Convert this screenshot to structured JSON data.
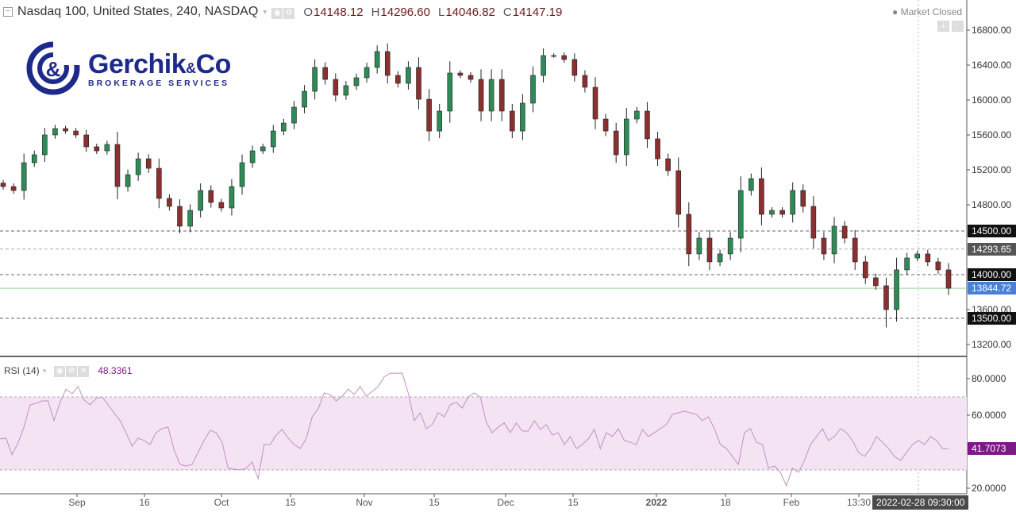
{
  "header": {
    "symbol": "Nasdaq 100, United States, 240, NASDAQ",
    "open_label": "O",
    "open": "14148.12",
    "high_label": "H",
    "high": "14296.60",
    "low_label": "L",
    "low": "14046.82",
    "close_label": "C",
    "close": "14147.19",
    "market_status": "Market Closed"
  },
  "logo": {
    "name": "Gerchik",
    "amp": "&",
    "co": "Co",
    "tagline": "BROKERAGE SERVICES"
  },
  "price_axis": {
    "ticks": [
      "16800.00",
      "16400.00",
      "16000.00",
      "15600.00",
      "15200.00",
      "14800.00",
      "13600.00",
      "13200.00"
    ],
    "levels": [
      {
        "label": "14500.00",
        "value": 14500,
        "color": "#111111"
      },
      {
        "label": "14293.65",
        "value": 14293.65,
        "color": "#555555"
      },
      {
        "label": "14000.00",
        "value": 14000,
        "color": "#111111"
      },
      {
        "label": "13844.72",
        "value": 13844.72,
        "color": "#4a7fd8"
      },
      {
        "label": "13500.00",
        "value": 13500,
        "color": "#111111"
      }
    ]
  },
  "rsi": {
    "title": "RSI (14)",
    "hover_value": "48.3361",
    "last_value": "41.7073",
    "ticks": [
      "80.0000",
      "60.0000",
      "20.0000"
    ],
    "upper": 70,
    "lower": 30,
    "color": "#9c27b0"
  },
  "time_axis": {
    "labels": [
      "Sep",
      "16",
      "Oct",
      "15",
      "Nov",
      "15",
      "Dec",
      "15",
      "2022",
      "18",
      "Feb",
      "13:30"
    ],
    "crosshair_date": "2022-02-28 09:30:00"
  },
  "chart_data": {
    "type": "candlestick",
    "ylim": [
      13200,
      16800
    ],
    "up_color": "#2e8b57",
    "down_color": "#8b2f2f",
    "close": [
      15009,
      14964,
      15282,
      15373,
      15600,
      15673,
      15645,
      15600,
      15464,
      15418,
      15491,
      15009,
      15145,
      15327,
      15218,
      14873,
      14782,
      14555,
      14736,
      14964,
      14827,
      14764,
      15009,
      15282,
      15418,
      15464,
      15645,
      15736,
      15918,
      16100,
      16373,
      16236,
      16055,
      16164,
      16255,
      16373,
      16555,
      16282,
      16191,
      16373,
      16009,
      15645,
      15873,
      16309,
      16282,
      16236,
      15873,
      16236,
      15873,
      15645,
      15964,
      16282,
      16509,
      16509,
      16464,
      16282,
      16146,
      15782,
      15645,
      15373,
      15782,
      15873,
      15555,
      15327,
      15191,
      14691,
      14237,
      14418,
      14146,
      14237,
      14418,
      14964,
      15100,
      14691,
      14736,
      14691,
      14964,
      14782,
      14418,
      14237,
      14555,
      14418,
      14146,
      13964,
      13873,
      13600,
      14055,
      14191,
      14237,
      14146,
      14055,
      13845
    ],
    "rsi": [
      47,
      47.4,
      38.3,
      44.8,
      53.5,
      65.6,
      66.5,
      67.8,
      67.8,
      57,
      67,
      74.3,
      71.7,
      75.7,
      68.3,
      65.7,
      69.1,
      70,
      65.7,
      61.3,
      57,
      50.4,
      43,
      47.4,
      46.1,
      43.9,
      50.4,
      52.6,
      53.5,
      40.9,
      33,
      32.2,
      33,
      39.6,
      46.1,
      51.7,
      50.4,
      45.2,
      30.9,
      30.4,
      30,
      30.9,
      34.3,
      25.2,
      43.9,
      43.9,
      49.1,
      52.2,
      47.4,
      43.9,
      41.7,
      47,
      59.1,
      63.5,
      72.2,
      71.3,
      67.8,
      70.4,
      74.3,
      71.3,
      75.7,
      70.4,
      73,
      75.7,
      81,
      83,
      83,
      83,
      72.2,
      57,
      61.3,
      52.6,
      54.8,
      61.3,
      59.1,
      65.7,
      67,
      63.9,
      70,
      72.2,
      70,
      56.1,
      50.4,
      53.5,
      55.7,
      50.4,
      55.7,
      51.3,
      51.3,
      57,
      52.2,
      54.8,
      49.1,
      50.4,
      43.9,
      48.3,
      41.7,
      43.9,
      47,
      52.2,
      41.7,
      50.4,
      48.3,
      52.6,
      46.1,
      45.2,
      43.9,
      52.2,
      48.3,
      50.4,
      52.6,
      54.8,
      60.4,
      61.3,
      62.2,
      61.3,
      60.4,
      57,
      59.1,
      52.6,
      43.9,
      41.7,
      37.4,
      33,
      50.4,
      52.6,
      45.2,
      43.9,
      30.9,
      32.2,
      28.7,
      21.3,
      30.9,
      28.7,
      35.2,
      43.9,
      48.3,
      52.6,
      46.1,
      48.3,
      52.6,
      50.4,
      46.1,
      39.6,
      37.4,
      41.7,
      48.3,
      45.2,
      41.7,
      37.4,
      35.2,
      39.6,
      43.9,
      46.1,
      43.9,
      48.3,
      46.1,
      41.7,
      41.7
    ]
  }
}
